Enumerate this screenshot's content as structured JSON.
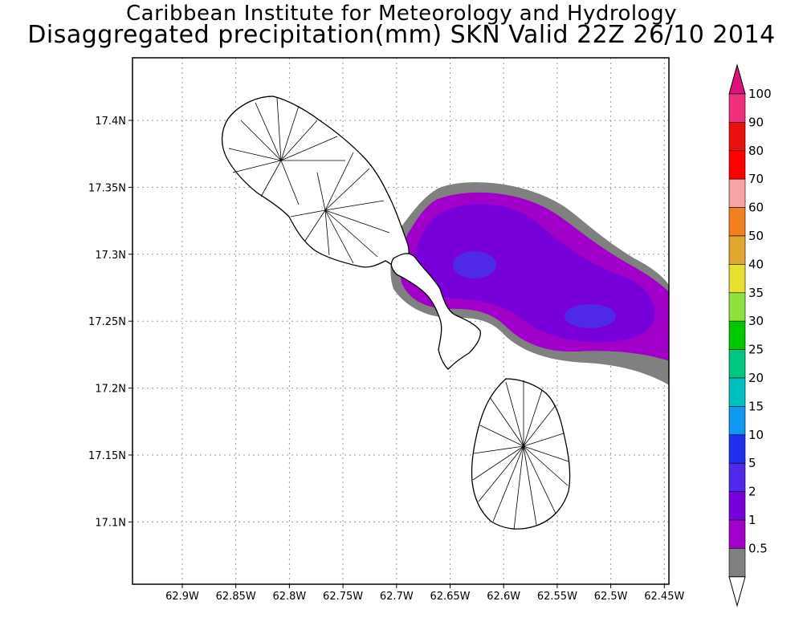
{
  "title": "Caribbean Institute for Meteorology and Hydrology",
  "subtitle": "Disaggregated precipitation(mm) SKN Valid 22Z 26/10 2014",
  "map": {
    "x_ticks": [
      "62.9W",
      "62.85W",
      "62.8W",
      "62.75W",
      "62.7W",
      "62.65W",
      "62.6W",
      "62.55W",
      "62.5W",
      "62.45W"
    ],
    "y_ticks": [
      "17.4N",
      "17.35N",
      "17.3N",
      "17.25N",
      "17.2N",
      "17.15N",
      "17.1N"
    ],
    "islands": [
      "St. Kitts",
      "Nevis"
    ],
    "precip_field_levels_mm": [
      0.5,
      1,
      2,
      5
    ]
  },
  "legend": {
    "levels": [
      {
        "label": "100",
        "color": "#f0307a"
      },
      {
        "label": "90",
        "color": "#e81010"
      },
      {
        "label": "80",
        "color": "#ff0000"
      },
      {
        "label": "70",
        "color": "#f9a4a4"
      },
      {
        "label": "60",
        "color": "#f08020"
      },
      {
        "label": "50",
        "color": "#e0a830"
      },
      {
        "label": "40",
        "color": "#e8e030"
      },
      {
        "label": "35",
        "color": "#90e040"
      },
      {
        "label": "30",
        "color": "#00c800"
      },
      {
        "label": "25",
        "color": "#00c880"
      },
      {
        "label": "20",
        "color": "#00c0c0"
      },
      {
        "label": "15",
        "color": "#1098f0"
      },
      {
        "label": "10",
        "color": "#2030f0"
      },
      {
        "label": "5",
        "color": "#5028e8"
      },
      {
        "label": "2",
        "color": "#7800d8"
      },
      {
        "label": "1",
        "color": "#a000c8"
      },
      {
        "label": "0.5",
        "color": "#808080"
      }
    ],
    "top_arrow_color": "#e0107a"
  }
}
